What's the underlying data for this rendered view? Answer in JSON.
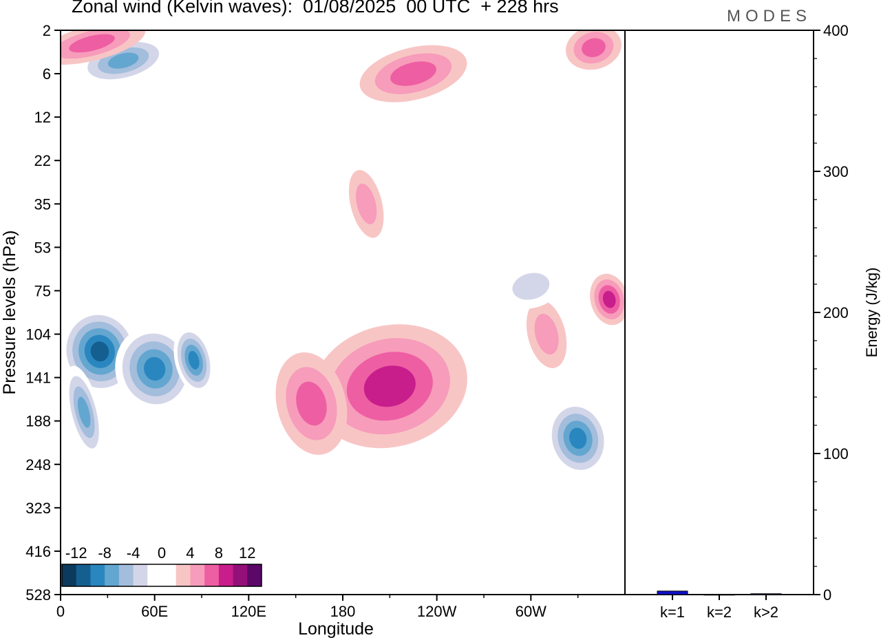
{
  "chart_data": [
    {
      "type": "heatmap",
      "title": "Zonal wind (Kelvin waves):  01/08/2025  00 UTC  + 228 hrs",
      "xlabel": "Longitude",
      "ylabel": "Pressure levels (hPa)",
      "x_ticks": [
        "0",
        "60E",
        "120E",
        "180",
        "120W",
        "60W"
      ],
      "y_ticks": [
        "2",
        "6",
        "12",
        "22",
        "35",
        "53",
        "75",
        "104",
        "141",
        "188",
        "248",
        "323",
        "416",
        "528"
      ],
      "colorbar": {
        "labels": [
          "-12",
          "-8",
          "-4",
          "0",
          "4",
          "8",
          "12"
        ],
        "colors": [
          "#0b3a5c",
          "#145f8f",
          "#2a86bf",
          "#63a6d0",
          "#a3bddc",
          "#d3d6e8",
          "#ffffff",
          "#ffffff",
          "#f8c5c5",
          "#f79cba",
          "#ee5ea3",
          "#c81e8c",
          "#931078",
          "#5b0868"
        ]
      },
      "cells": [
        {
          "lon": 25,
          "lev": 7.4,
          "rx": 25,
          "ry": 1.0,
          "value": -13
        },
        {
          "lon": 60,
          "lev": 7.8,
          "rx": 25,
          "ry": 1.0,
          "value": -11
        },
        {
          "lon": 85,
          "lev": 7.6,
          "rx": 12,
          "ry": 0.8,
          "value": -10
        },
        {
          "lon": 15,
          "lev": 8.8,
          "rx": 10,
          "ry": 1.1,
          "value": -9
        },
        {
          "lon": 210,
          "lev": 8.2,
          "rx": 50,
          "ry": 1.4,
          "value": 8
        },
        {
          "lon": 160,
          "lev": 8.6,
          "rx": 22,
          "ry": 1.2,
          "value": 7
        },
        {
          "lon": 330,
          "lev": 9.4,
          "rx": 20,
          "ry": 0.9,
          "value": -10
        },
        {
          "lon": 350,
          "lev": 6.2,
          "rx": 12,
          "ry": 0.6,
          "value": 8
        },
        {
          "lon": 310,
          "lev": 7.0,
          "rx": 12,
          "ry": 0.8,
          "value": 5
        },
        {
          "lon": 225,
          "lev": 1.0,
          "rx": 35,
          "ry": 0.6,
          "value": 7
        },
        {
          "lon": 40,
          "lev": 0.7,
          "rx": 30,
          "ry": 0.5,
          "value": -8
        },
        {
          "lon": 20,
          "lev": 0.3,
          "rx": 35,
          "ry": 0.4,
          "value": 6
        },
        {
          "lon": 340,
          "lev": 0.4,
          "rx": 18,
          "ry": 0.5,
          "value": 6
        },
        {
          "lon": 300,
          "lev": 5.9,
          "rx": 20,
          "ry": 0.5,
          "value": -4
        },
        {
          "lon": 195,
          "lev": 4.0,
          "rx": 10,
          "ry": 0.8,
          "value": 4
        }
      ],
      "xlim": [
        0,
        360
      ],
      "ylim_index": [
        0,
        13
      ]
    },
    {
      "type": "bar",
      "categories": [
        "k=1",
        "k=2",
        "k>2"
      ],
      "values": [
        2.5,
        0.1,
        0.6
      ],
      "ylabel": "Energy (J/kg)",
      "y_ticks": [
        "0",
        "100",
        "200",
        "300",
        "400"
      ],
      "ylim": [
        0,
        400
      ],
      "bar_color": "#1010c8"
    }
  ],
  "brand": "MODES"
}
